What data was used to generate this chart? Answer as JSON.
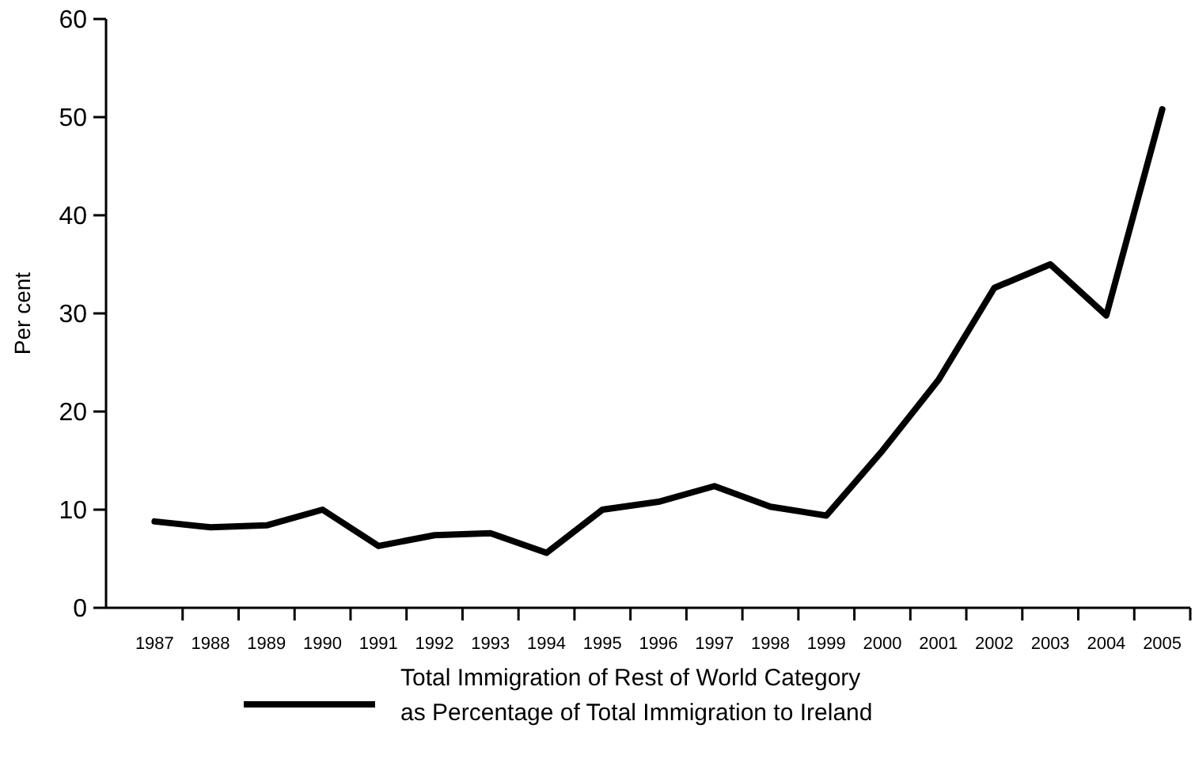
{
  "chart_data": {
    "type": "line",
    "ylabel": "Per cent",
    "categories": [
      "1987",
      "1988",
      "1989",
      "1990",
      "1991",
      "1992",
      "1993",
      "1994",
      "1995",
      "1996",
      "1997",
      "1998",
      "1999",
      "2000",
      "2001",
      "2002",
      "2003",
      "2004",
      "2005"
    ],
    "series": [
      {
        "name": "Total Immigration of Rest of World Category\nas Percentage of Total Immigration to Ireland",
        "color": "#000000",
        "values": [
          8.8,
          8.2,
          8.4,
          10,
          6.3,
          7.4,
          7.6,
          5.6,
          10,
          10.8,
          12.4,
          10.3,
          9.4,
          16,
          23.2,
          32.6,
          35,
          29.8,
          50.8
        ]
      }
    ],
    "ylim": [
      0,
      60
    ],
    "yticks": [
      0,
      10,
      20,
      30,
      40,
      50,
      60
    ],
    "grid": false,
    "legend": "bottom",
    "marker": "none",
    "line_style": "solid"
  }
}
